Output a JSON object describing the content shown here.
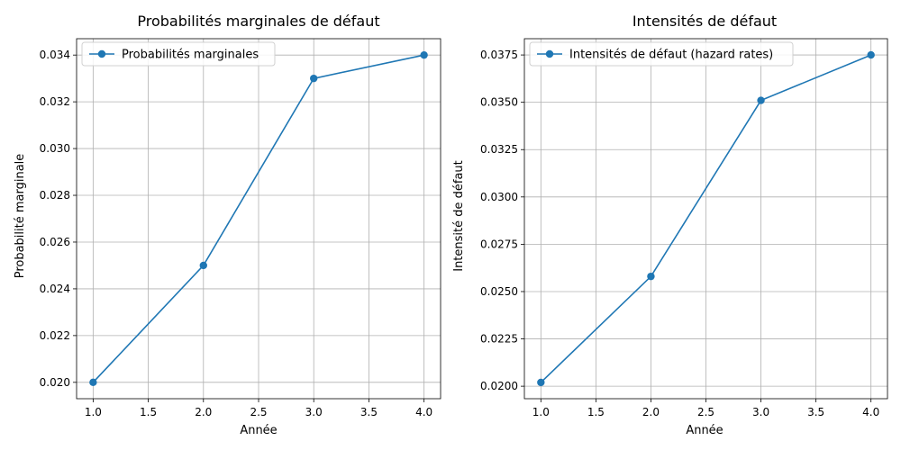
{
  "figure": {
    "charts": [
      {
        "title": "Probabilités marginales de défaut",
        "xlabel": "Année",
        "ylabel": "Probabilité marginale",
        "legend_label": "Probabilités marginales",
        "x_ticks": [
          "1.0",
          "1.5",
          "2.0",
          "2.5",
          "3.0",
          "3.5",
          "4.0"
        ],
        "y_ticks": [
          "0.020",
          "0.022",
          "0.024",
          "0.026",
          "0.028",
          "0.030",
          "0.032",
          "0.034"
        ]
      },
      {
        "title": "Intensités de défaut",
        "xlabel": "Année",
        "ylabel": "Intensité de défaut",
        "legend_label": "Intensités de défaut (hazard rates)",
        "x_ticks": [
          "1.0",
          "1.5",
          "2.0",
          "2.5",
          "3.0",
          "3.5",
          "4.0"
        ],
        "y_ticks": [
          "0.0200",
          "0.0225",
          "0.0250",
          "0.0275",
          "0.0300",
          "0.0325",
          "0.0350",
          "0.0375"
        ]
      }
    ]
  },
  "colors": {
    "series": "#1f77b4",
    "grid": "#b0b0b0",
    "axis": "#000000"
  },
  "chart_data": [
    {
      "type": "line",
      "title": "Probabilités marginales de défaut",
      "xlabel": "Année",
      "ylabel": "Probabilité marginale",
      "x": [
        1,
        2,
        3,
        4
      ],
      "series": [
        {
          "name": "Probabilités marginales",
          "values": [
            0.02,
            0.025,
            0.033,
            0.034
          ],
          "marker": "circle"
        }
      ],
      "xlim": [
        0.85,
        4.15
      ],
      "ylim": [
        0.0193,
        0.0347
      ],
      "grid": true,
      "legend": "upper-left"
    },
    {
      "type": "line",
      "title": "Intensités de défaut",
      "xlabel": "Année",
      "ylabel": "Intensité de défaut",
      "x": [
        1,
        2,
        3,
        4
      ],
      "series": [
        {
          "name": "Intensités de défaut (hazard rates)",
          "values": [
            0.0202,
            0.0258,
            0.0351,
            0.0375
          ],
          "marker": "circle"
        }
      ],
      "xlim": [
        0.85,
        4.15
      ],
      "ylim": [
        0.01934,
        0.03836
      ],
      "grid": true,
      "legend": "upper-left"
    }
  ]
}
